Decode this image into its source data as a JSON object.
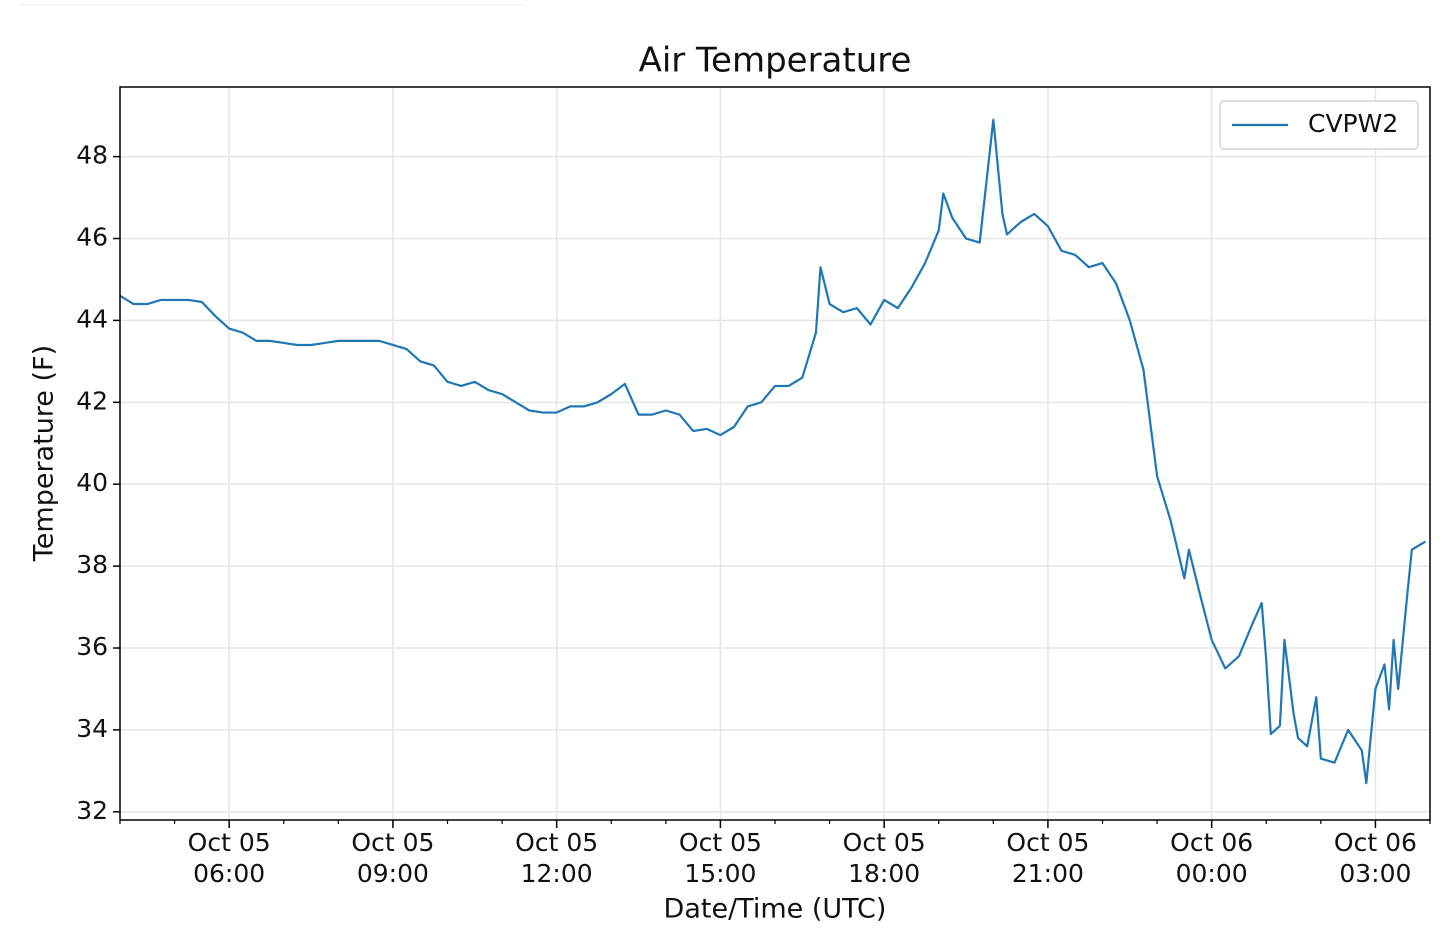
{
  "chart_data": {
    "type": "line",
    "title": "Air Temperature",
    "xlabel": "Date/Time (UTC)",
    "ylabel": "Temperature (F)",
    "x": [
      "Oct 05 04:00",
      "Oct 05 04:15",
      "Oct 05 04:30",
      "Oct 05 04:45",
      "Oct 05 05:00",
      "Oct 05 05:15",
      "Oct 05 05:30",
      "Oct 05 05:45",
      "Oct 05 06:00",
      "Oct 05 06:15",
      "Oct 05 06:30",
      "Oct 05 06:45",
      "Oct 05 07:00",
      "Oct 05 07:15",
      "Oct 05 07:30",
      "Oct 05 07:45",
      "Oct 05 08:00",
      "Oct 05 08:15",
      "Oct 05 08:30",
      "Oct 05 08:45",
      "Oct 05 09:00",
      "Oct 05 09:15",
      "Oct 05 09:30",
      "Oct 05 09:45",
      "Oct 05 10:00",
      "Oct 05 10:15",
      "Oct 05 10:30",
      "Oct 05 10:45",
      "Oct 05 11:00",
      "Oct 05 11:15",
      "Oct 05 11:30",
      "Oct 05 11:45",
      "Oct 05 12:00",
      "Oct 05 12:15",
      "Oct 05 12:30",
      "Oct 05 12:45",
      "Oct 05 13:00",
      "Oct 05 13:15",
      "Oct 05 13:30",
      "Oct 05 13:45",
      "Oct 05 14:00",
      "Oct 05 14:15",
      "Oct 05 14:30",
      "Oct 05 14:45",
      "Oct 05 15:00",
      "Oct 05 15:15",
      "Oct 05 15:30",
      "Oct 05 15:45",
      "Oct 05 16:00",
      "Oct 05 16:15",
      "Oct 05 16:30",
      "Oct 05 16:45",
      "Oct 05 16:50",
      "Oct 05 17:00",
      "Oct 05 17:15",
      "Oct 05 17:30",
      "Oct 05 17:45",
      "Oct 05 18:00",
      "Oct 05 18:15",
      "Oct 05 18:30",
      "Oct 05 18:45",
      "Oct 05 19:00",
      "Oct 05 19:05",
      "Oct 05 19:15",
      "Oct 05 19:30",
      "Oct 05 19:45",
      "Oct 05 20:00",
      "Oct 05 20:10",
      "Oct 05 20:15",
      "Oct 05 20:30",
      "Oct 05 20:45",
      "Oct 05 21:00",
      "Oct 05 21:15",
      "Oct 05 21:30",
      "Oct 05 21:45",
      "Oct 05 22:00",
      "Oct 05 22:15",
      "Oct 05 22:30",
      "Oct 05 22:45",
      "Oct 05 23:00",
      "Oct 05 23:15",
      "Oct 05 23:30",
      "Oct 05 23:35",
      "Oct 05 23:45",
      "Oct 06 00:00",
      "Oct 06 00:15",
      "Oct 06 00:30",
      "Oct 06 00:45",
      "Oct 06 00:55",
      "Oct 06 01:00",
      "Oct 06 01:05",
      "Oct 06 01:15",
      "Oct 06 01:20",
      "Oct 06 01:30",
      "Oct 06 01:35",
      "Oct 06 01:45",
      "Oct 06 01:55",
      "Oct 06 02:00",
      "Oct 06 02:15",
      "Oct 06 02:30",
      "Oct 06 02:45",
      "Oct 06 02:50",
      "Oct 06 03:00",
      "Oct 06 03:10",
      "Oct 06 03:15",
      "Oct 06 03:20",
      "Oct 06 03:25",
      "Oct 06 03:35",
      "Oct 06 03:40",
      "Oct 06 03:55"
    ],
    "series": [
      {
        "name": "CVPW2",
        "color": "#1f77b4",
        "values": [
          44.6,
          44.4,
          44.4,
          44.5,
          44.5,
          44.5,
          44.45,
          44.1,
          43.8,
          43.7,
          43.5,
          43.5,
          43.45,
          43.4,
          43.4,
          43.45,
          43.5,
          43.5,
          43.5,
          43.5,
          43.4,
          43.3,
          43.0,
          42.9,
          42.5,
          42.4,
          42.5,
          42.3,
          42.2,
          42.0,
          41.8,
          41.75,
          41.75,
          41.9,
          41.9,
          42.0,
          42.2,
          42.45,
          41.7,
          41.7,
          41.8,
          41.7,
          41.3,
          41.35,
          41.2,
          41.4,
          41.9,
          42.0,
          42.4,
          42.4,
          42.6,
          43.7,
          45.3,
          44.4,
          44.2,
          44.3,
          43.9,
          44.5,
          44.3,
          44.8,
          45.4,
          46.2,
          47.1,
          46.5,
          46.0,
          45.9,
          48.9,
          46.6,
          46.1,
          46.4,
          46.6,
          46.3,
          45.7,
          45.6,
          45.3,
          45.4,
          44.9,
          44.0,
          42.8,
          40.2,
          39.1,
          37.7,
          38.4,
          37.5,
          36.2,
          35.5,
          35.8,
          36.6,
          37.1,
          35.7,
          33.9,
          34.1,
          36.2,
          34.4,
          33.8,
          33.6,
          34.8,
          33.3,
          33.2,
          34.0,
          33.5,
          32.7,
          35.0,
          35.6,
          34.5,
          36.2,
          35.0,
          37.3,
          38.4,
          38.6
        ]
      }
    ],
    "xlim": [
      "Oct 05 04:00",
      "Oct 06 04:00"
    ],
    "xticks": [
      {
        "value": "Oct 05 06:00",
        "label": "Oct 05\n06:00"
      },
      {
        "value": "Oct 05 09:00",
        "label": "Oct 05\n09:00"
      },
      {
        "value": "Oct 05 12:00",
        "label": "Oct 05\n12:00"
      },
      {
        "value": "Oct 05 15:00",
        "label": "Oct 05\n15:00"
      },
      {
        "value": "Oct 05 18:00",
        "label": "Oct 05\n18:00"
      },
      {
        "value": "Oct 05 21:00",
        "label": "Oct 05\n21:00"
      },
      {
        "value": "Oct 06 00:00",
        "label": "Oct 06\n00:00"
      },
      {
        "value": "Oct 06 03:00",
        "label": "Oct 06\n03:00"
      }
    ],
    "xminorticks": [
      "Oct 05 04:00",
      "Oct 05 05:00",
      "Oct 05 07:00",
      "Oct 05 08:00",
      "Oct 05 10:00",
      "Oct 05 11:00",
      "Oct 05 13:00",
      "Oct 05 14:00",
      "Oct 05 16:00",
      "Oct 05 17:00",
      "Oct 05 19:00",
      "Oct 05 20:00",
      "Oct 05 22:00",
      "Oct 05 23:00",
      "Oct 06 01:00",
      "Oct 06 02:00",
      "Oct 06 04:00"
    ],
    "ylim": [
      31.8,
      49.7
    ],
    "yticks": [
      32,
      34,
      36,
      38,
      40,
      42,
      44,
      46,
      48
    ],
    "grid": true,
    "legend": "upper right"
  }
}
